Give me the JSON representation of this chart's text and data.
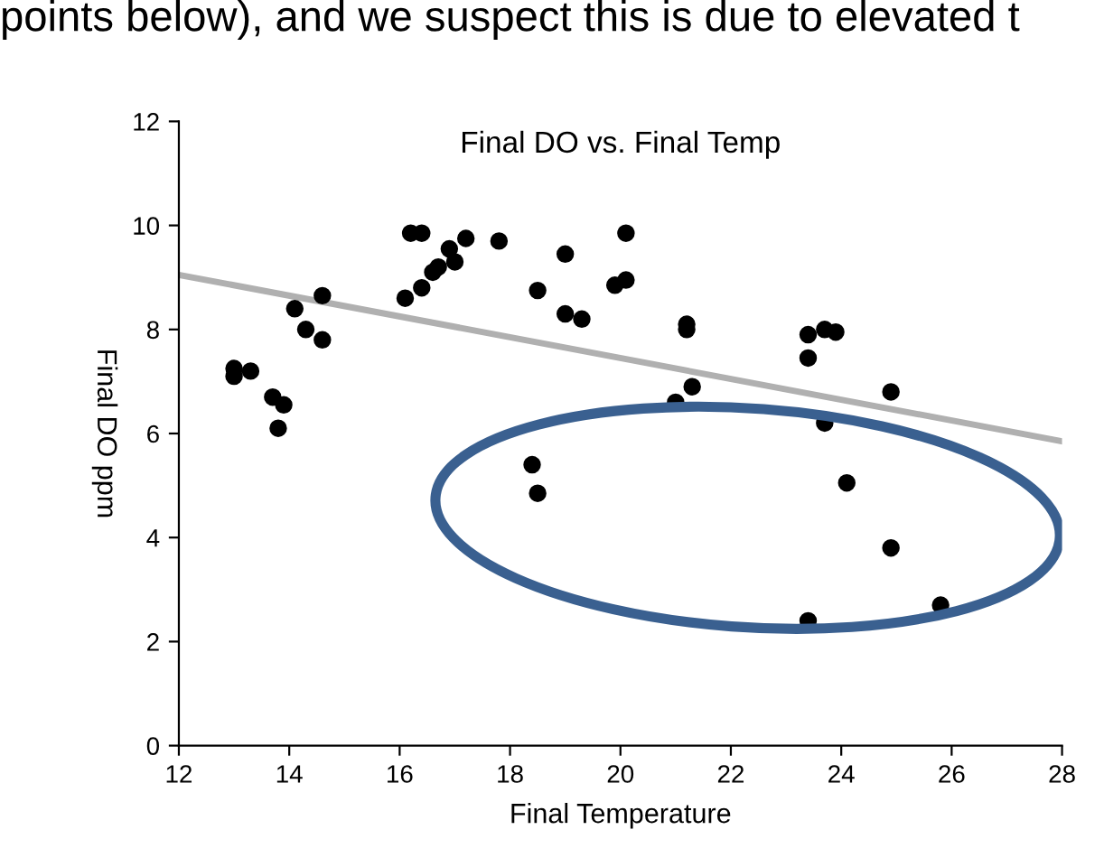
{
  "chart_data": {
    "type": "scatter",
    "title": "Final DO vs. Final Temp",
    "xlabel": "Final Temperature",
    "ylabel": "Final DO ppm",
    "annotations": [
      "points below), and we suspect this is due to elevated t"
    ],
    "xlim": [
      12,
      28
    ],
    "xticks": [
      12,
      14,
      16,
      18,
      20,
      22,
      24,
      26,
      28
    ],
    "ylim": [
      0,
      12
    ],
    "yticks": [
      0,
      2,
      4,
      6,
      8,
      10,
      12
    ],
    "grid": false,
    "series": [
      {
        "color": "#000000",
        "marker": "circle",
        "x": [
          13.0,
          13.0,
          13.3,
          13.7,
          13.9,
          13.8,
          14.1,
          14.3,
          14.6,
          14.6,
          16.1,
          16.2,
          16.4,
          16.4,
          16.6,
          16.7,
          16.9,
          17.0,
          17.2,
          17.8,
          18.5,
          19.0,
          19.0,
          19.3,
          19.9,
          20.1,
          20.1,
          21.2,
          21.2,
          21.0,
          21.3,
          23.4,
          23.4,
          23.7,
          23.9,
          23.7,
          24.9,
          24.1,
          24.9,
          25.8,
          23.4,
          18.4,
          18.5
        ],
        "values": [
          7.25,
          7.1,
          7.2,
          6.7,
          6.55,
          6.1,
          8.4,
          8.0,
          8.65,
          7.8,
          8.6,
          9.85,
          9.85,
          8.8,
          9.1,
          9.2,
          9.55,
          9.3,
          9.75,
          9.7,
          8.75,
          9.45,
          8.3,
          8.2,
          8.85,
          9.85,
          8.95,
          8.1,
          8.0,
          6.6,
          6.9,
          7.9,
          7.45,
          8.0,
          7.95,
          6.2,
          6.8,
          5.05,
          3.8,
          2.7,
          2.4,
          5.4,
          4.85
        ]
      },
      {
        "type": "line",
        "marker": "none",
        "color": "#b0b0b0",
        "x": [
          12,
          28
        ],
        "values": [
          9.05,
          5.85
        ]
      }
    ]
  }
}
